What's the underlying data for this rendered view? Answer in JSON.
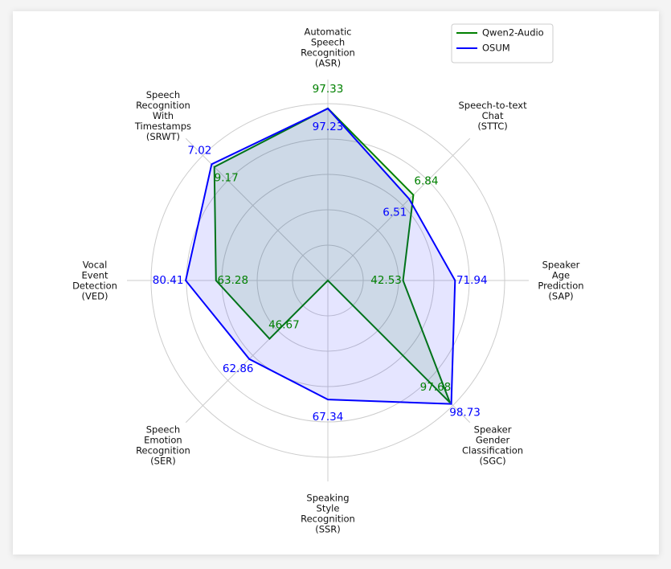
{
  "chart_data": {
    "type": "radar",
    "categories": [
      [
        "Automatic",
        "Speech",
        "Recognition",
        "(ASR)"
      ],
      [
        "Speech-to-text",
        "Chat",
        "(STTC)"
      ],
      [
        "Speaker",
        "Age",
        "Prediction",
        "(SAP)"
      ],
      [
        "Speaker",
        "Gender",
        "Classification",
        "(SGC)"
      ],
      [
        "Speaking",
        "Style",
        "Recognition",
        "(SSR)"
      ],
      [
        "Speech",
        "Emotion",
        "Recognition",
        "(SER)"
      ],
      [
        "Vocal",
        "Event",
        "Detection",
        "(VED)"
      ],
      [
        "Speech",
        "Recognition",
        "With",
        "Timestamps",
        "(SRWT)"
      ]
    ],
    "rlims": [
      [
        0,
        100
      ],
      [
        0,
        10
      ],
      [
        0,
        100
      ],
      [
        0,
        100
      ],
      [
        0,
        100
      ],
      [
        0,
        100
      ],
      [
        0,
        100
      ],
      [
        100,
        0
      ]
    ],
    "series": [
      {
        "name": "Qwen2-Audio",
        "color": "#008000",
        "values": [
          97.33,
          6.84,
          42.53,
          97.68,
          0,
          46.67,
          63.28,
          9.17
        ],
        "value_labels": [
          "97.33",
          "6.84",
          "42.53",
          "97.68",
          null,
          "46.67",
          "63.28",
          "9.17"
        ]
      },
      {
        "name": "OSUM",
        "color": "#0000ff",
        "values": [
          97.23,
          6.51,
          71.94,
          98.73,
          67.34,
          62.86,
          80.41,
          7.02
        ]
      }
    ],
    "legend": "upper right",
    "grid": true
  }
}
